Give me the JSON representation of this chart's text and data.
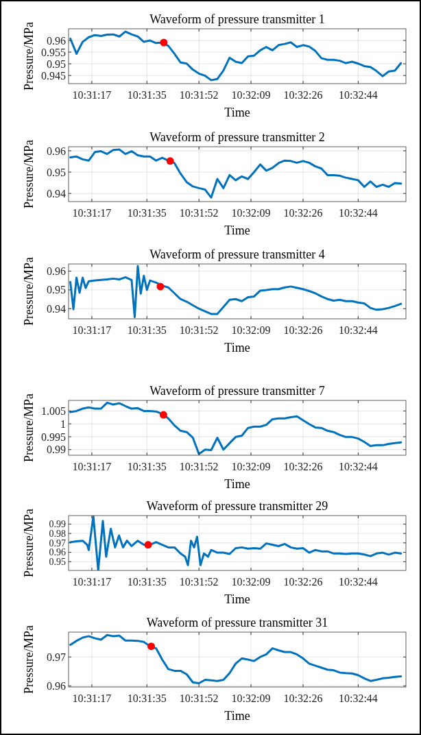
{
  "chart_data": [
    {
      "type": "line",
      "title": "Waveform of pressure transmitter 1",
      "xlabel": "Time",
      "ylabel": "Pressure/MPa",
      "grid": true,
      "x": [
        10.51944,
        10.52,
        10.52056,
        10.52111,
        10.52167,
        10.52222,
        10.52278,
        10.52333,
        10.52389,
        10.52444,
        10.525,
        10.52556,
        10.52611,
        10.52667,
        10.52722,
        10.52778,
        10.52833,
        10.52889,
        10.52944,
        10.53,
        10.53056,
        10.53111,
        10.53167,
        10.53222,
        10.53278,
        10.53333,
        10.53389,
        10.53444,
        10.535,
        10.53556,
        10.53611,
        10.53667,
        10.53722,
        10.53778,
        10.53833,
        10.53889,
        10.53944,
        10.54,
        10.54056,
        10.54111,
        10.54167,
        10.54222,
        10.54278,
        10.54333,
        10.54389,
        10.54444,
        10.545,
        10.54556,
        10.54611,
        10.54667,
        10.54722,
        10.54778,
        10.54833,
        10.54889,
        10.54944
      ],
      "xlim": [
        10.51928,
        10.54989
      ],
      "xticks": [
        {
          "value": 10.52139,
          "label": "10:31:17"
        },
        {
          "value": 10.52639,
          "label": "10:31:35"
        },
        {
          "value": 10.53111,
          "label": "10:31:52"
        },
        {
          "value": 10.53583,
          "label": "10:32:09"
        },
        {
          "value": 10.54056,
          "label": "10:32:26"
        },
        {
          "value": 10.54556,
          "label": "10:32:44"
        }
      ],
      "ylim": [
        0.9415,
        0.965
      ],
      "yticks": [
        0.945,
        0.95,
        0.955,
        0.96
      ],
      "series": [
        {
          "color": "#0072bd",
          "values": [
            0.9608,
            0.9543,
            0.9594,
            0.9614,
            0.9623,
            0.9619,
            0.9625,
            0.9626,
            0.9617,
            0.9638,
            0.9626,
            0.9617,
            0.9594,
            0.96,
            0.9589,
            0.9591,
            0.9577,
            0.9543,
            0.9506,
            0.9501,
            0.9475,
            0.9458,
            0.9449,
            0.943,
            0.9435,
            0.9471,
            0.9526,
            0.9509,
            0.9503,
            0.9532,
            0.9535,
            0.9558,
            0.9572,
            0.9558,
            0.958,
            0.9585,
            0.9592,
            0.9572,
            0.958,
            0.9574,
            0.9555,
            0.9524,
            0.9517,
            0.9517,
            0.9513,
            0.9503,
            0.9509,
            0.9501,
            0.949,
            0.9486,
            0.9469,
            0.9447,
            0.9467,
            0.9471,
            0.9503
          ]
        },
        {
          "type": "scatter",
          "color": "#ff0000",
          "marker": "circle",
          "x": [
            10.52792
          ],
          "values": [
            0.9591
          ]
        }
      ]
    },
    {
      "type": "line",
      "title": "Waveform of pressure transmitter 2",
      "xlabel": "Time",
      "ylabel": "Pressure/MPa",
      "grid": true,
      "x": [
        10.51944,
        10.52,
        10.52056,
        10.52111,
        10.52167,
        10.52222,
        10.52278,
        10.52333,
        10.52389,
        10.52444,
        10.525,
        10.52556,
        10.52611,
        10.52667,
        10.52722,
        10.52778,
        10.52833,
        10.52889,
        10.52944,
        10.53,
        10.53056,
        10.53111,
        10.53167,
        10.53222,
        10.53278,
        10.53333,
        10.53389,
        10.53444,
        10.535,
        10.53556,
        10.53611,
        10.53667,
        10.53722,
        10.53778,
        10.53833,
        10.53889,
        10.53944,
        10.54,
        10.54056,
        10.54111,
        10.54167,
        10.54222,
        10.54278,
        10.54333,
        10.54389,
        10.54444,
        10.545,
        10.54556,
        10.54611,
        10.54667,
        10.54722,
        10.54778,
        10.54833,
        10.54889,
        10.54944
      ],
      "xlim": [
        10.51928,
        10.54989
      ],
      "xticks": [
        {
          "value": 10.52139,
          "label": "10:31:17"
        },
        {
          "value": 10.52639,
          "label": "10:31:35"
        },
        {
          "value": 10.53111,
          "label": "10:31:52"
        },
        {
          "value": 10.53583,
          "label": "10:32:09"
        },
        {
          "value": 10.54056,
          "label": "10:32:26"
        },
        {
          "value": 10.54556,
          "label": "10:32:44"
        }
      ],
      "ylim": [
        0.9362,
        0.9619
      ],
      "yticks": [
        0.94,
        0.95,
        0.96
      ],
      "series": [
        {
          "color": "#0072bd",
          "values": [
            0.9569,
            0.9573,
            0.956,
            0.9554,
            0.9594,
            0.9598,
            0.9585,
            0.9604,
            0.9606,
            0.9585,
            0.9598,
            0.9579,
            0.9573,
            0.9573,
            0.9554,
            0.9567,
            0.9554,
            0.9542,
            0.9493,
            0.9453,
            0.9433,
            0.9425,
            0.9418,
            0.9381,
            0.9468,
            0.9425,
            0.9486,
            0.9462,
            0.948,
            0.9468,
            0.95,
            0.9536,
            0.9507,
            0.952,
            0.9542,
            0.9554,
            0.9552,
            0.9544,
            0.9552,
            0.9544,
            0.9527,
            0.9517,
            0.9486,
            0.9486,
            0.9483,
            0.9474,
            0.9468,
            0.9462,
            0.9431,
            0.9456,
            0.9431,
            0.9441,
            0.9431,
            0.9449,
            0.9446
          ]
        },
        {
          "type": "scatter",
          "color": "#ff0000",
          "marker": "circle",
          "x": [
            10.5285
          ],
          "values": [
            0.9552
          ]
        }
      ]
    },
    {
      "type": "line",
      "title": "Waveform of pressure transmitter 4",
      "xlabel": "Time",
      "ylabel": "Pressure/MPa",
      "grid": true,
      "x": [
        10.51944,
        10.51972,
        10.52,
        10.52028,
        10.52056,
        10.52083,
        10.52111,
        10.52167,
        10.52222,
        10.52278,
        10.52333,
        10.52389,
        10.52444,
        10.525,
        10.52528,
        10.52556,
        10.52583,
        10.52611,
        10.52639,
        10.52667,
        10.52722,
        10.52778,
        10.52833,
        10.52889,
        10.52944,
        10.53,
        10.53056,
        10.53111,
        10.53167,
        10.53222,
        10.53278,
        10.53333,
        10.53389,
        10.53444,
        10.535,
        10.53556,
        10.53611,
        10.53667,
        10.53722,
        10.53778,
        10.53833,
        10.53889,
        10.53944,
        10.54,
        10.54056,
        10.54111,
        10.54167,
        10.54222,
        10.54278,
        10.54333,
        10.54389,
        10.54444,
        10.545,
        10.54556,
        10.54611,
        10.54667,
        10.54722,
        10.54778,
        10.54833,
        10.54889,
        10.54944
      ],
      "xlim": [
        10.51928,
        10.54989
      ],
      "xticks": [
        {
          "value": 10.52139,
          "label": "10:31:17"
        },
        {
          "value": 10.52639,
          "label": "10:31:35"
        },
        {
          "value": 10.53111,
          "label": "10:31:52"
        },
        {
          "value": 10.53583,
          "label": "10:32:09"
        },
        {
          "value": 10.54056,
          "label": "10:32:26"
        },
        {
          "value": 10.54556,
          "label": "10:32:44"
        }
      ],
      "ylim": [
        0.9346,
        0.9638
      ],
      "yticks": [
        0.94,
        0.95,
        0.96
      ],
      "series": [
        {
          "color": "#0072bd",
          "values": [
            0.9542,
            0.9397,
            0.9565,
            0.9485,
            0.9565,
            0.951,
            0.9546,
            0.955,
            0.9553,
            0.9556,
            0.956,
            0.9556,
            0.9567,
            0.9553,
            0.9355,
            0.9627,
            0.948,
            0.9575,
            0.95,
            0.955,
            0.9539,
            0.9522,
            0.9513,
            0.9482,
            0.9451,
            0.9437,
            0.9418,
            0.94,
            0.9386,
            0.9372,
            0.9372,
            0.9409,
            0.9447,
            0.9451,
            0.944,
            0.9461,
            0.9465,
            0.9496,
            0.9499,
            0.9504,
            0.9504,
            0.9513,
            0.9518,
            0.9511,
            0.9504,
            0.9494,
            0.9482,
            0.9465,
            0.9451,
            0.9443,
            0.9447,
            0.944,
            0.944,
            0.9433,
            0.9428,
            0.9404,
            0.9394,
            0.9397,
            0.9404,
            0.9414,
            0.9426
          ]
        },
        {
          "type": "scatter",
          "color": "#ff0000",
          "marker": "circle",
          "x": [
            10.52761
          ],
          "values": [
            0.9518
          ]
        }
      ]
    },
    {
      "type": "line",
      "title": "Waveform of pressure transmitter 7",
      "xlabel": "Time",
      "ylabel": "Pressure/MPa",
      "grid": true,
      "x": [
        10.51944,
        10.52,
        10.52056,
        10.52111,
        10.52167,
        10.52222,
        10.52278,
        10.52333,
        10.52389,
        10.52444,
        10.525,
        10.52556,
        10.52611,
        10.52667,
        10.52722,
        10.52778,
        10.52833,
        10.52889,
        10.52944,
        10.53,
        10.53056,
        10.53111,
        10.53167,
        10.53222,
        10.53278,
        10.53333,
        10.53389,
        10.53444,
        10.535,
        10.53556,
        10.53611,
        10.53667,
        10.53722,
        10.53778,
        10.53833,
        10.53889,
        10.53944,
        10.54,
        10.54056,
        10.54111,
        10.54167,
        10.54222,
        10.54278,
        10.54333,
        10.54389,
        10.54444,
        10.545,
        10.54556,
        10.54611,
        10.54667,
        10.54722,
        10.54778,
        10.54833,
        10.54889,
        10.54944
      ],
      "xlim": [
        10.51928,
        10.54989
      ],
      "xticks": [
        {
          "value": 10.52139,
          "label": "10:31:17"
        },
        {
          "value": 10.52639,
          "label": "10:31:35"
        },
        {
          "value": 10.53111,
          "label": "10:31:52"
        },
        {
          "value": 10.53583,
          "label": "10:32:09"
        },
        {
          "value": 10.54056,
          "label": "10:32:26"
        },
        {
          "value": 10.54556,
          "label": "10:32:44"
        }
      ],
      "ylim": [
        0.9878,
        1.0091
      ],
      "yticks": [
        0.99,
        0.995,
        1,
        1.005
      ],
      "series": [
        {
          "color": "#0072bd",
          "values": [
            1.0046,
            1.005,
            1.0059,
            1.0064,
            1.0059,
            1.0059,
            1.0082,
            1.0075,
            1.008,
            1.0069,
            1.0059,
            1.0061,
            1.005,
            1.005,
            1.0048,
            1.0039,
            1.0021,
            0.9994,
            0.9973,
            0.9968,
            0.9946,
            0.9883,
            0.99,
            0.9898,
            0.9946,
            0.99,
            0.9925,
            0.9949,
            0.9954,
            0.9984,
            0.9989,
            0.9989,
            0.9996,
            1.0018,
            1.0021,
            1.0021,
            1.0026,
            1.0029,
            1.0014,
            0.9999,
            0.9986,
            0.9984,
            0.9973,
            0.9968,
            0.9957,
            0.9949,
            0.9949,
            0.9943,
            0.993,
            0.9914,
            0.9917,
            0.9917,
            0.9922,
            0.9925,
            0.9928
          ]
        },
        {
          "type": "scatter",
          "color": "#ff0000",
          "marker": "circle",
          "x": [
            10.52789
          ],
          "values": [
            1.0035
          ]
        }
      ]
    },
    {
      "type": "line",
      "title": "Waveform of pressure transmitter 29",
      "xlabel": "Time",
      "ylabel": "Pressure/MPa",
      "grid": true,
      "x": [
        10.51944,
        10.52,
        10.52056,
        10.52097,
        10.52111,
        10.52153,
        10.52197,
        10.52239,
        10.52269,
        10.52311,
        10.5235,
        10.52386,
        10.52422,
        10.52458,
        10.525,
        10.52556,
        10.52611,
        10.52667,
        10.52722,
        10.52778,
        10.52833,
        10.52889,
        10.52944,
        10.52986,
        10.53011,
        10.53039,
        10.53067,
        10.53094,
        10.53125,
        10.53156,
        10.53194,
        10.53222,
        10.53278,
        10.53333,
        10.53389,
        10.53444,
        10.535,
        10.53556,
        10.53611,
        10.53667,
        10.53722,
        10.53778,
        10.53833,
        10.53889,
        10.53944,
        10.54,
        10.54056,
        10.54111,
        10.54167,
        10.54222,
        10.54278,
        10.54333,
        10.54389,
        10.54444,
        10.545,
        10.54556,
        10.54611,
        10.54667,
        10.54722,
        10.54778,
        10.54833,
        10.54889,
        10.54944
      ],
      "xlim": [
        10.51928,
        10.54989
      ],
      "xticks": [
        {
          "value": 10.52139,
          "label": "10:31:17"
        },
        {
          "value": 10.52639,
          "label": "10:31:35"
        },
        {
          "value": 10.53111,
          "label": "10:31:52"
        },
        {
          "value": 10.53583,
          "label": "10:32:09"
        },
        {
          "value": 10.54056,
          "label": "10:32:26"
        },
        {
          "value": 10.54556,
          "label": "10:32:44"
        }
      ],
      "ylim": [
        0.9407,
        0.999
      ],
      "yticks": [
        0.95,
        0.96,
        0.97,
        0.98,
        0.99
      ],
      "series": [
        {
          "color": "#0072bd",
          "values": [
            0.9708,
            0.9717,
            0.9723,
            0.968,
            0.9624,
            0.9982,
            0.9407,
            0.9934,
            0.9553,
            0.985,
            0.9652,
            0.9779,
            0.9652,
            0.9723,
            0.9666,
            0.9723,
            0.968,
            0.968,
            0.9708,
            0.968,
            0.9652,
            0.9652,
            0.9587,
            0.9553,
            0.9463,
            0.9723,
            0.9652,
            0.9765,
            0.9463,
            0.9587,
            0.9553,
            0.9624,
            0.9596,
            0.9596,
            0.9582,
            0.9644,
            0.9652,
            0.9638,
            0.9644,
            0.9638,
            0.9694,
            0.968,
            0.9666,
            0.9689,
            0.9652,
            0.9638,
            0.9644,
            0.9596,
            0.9624,
            0.961,
            0.961,
            0.9587,
            0.9587,
            0.9582,
            0.9587,
            0.9587,
            0.9576,
            0.9559,
            0.9587,
            0.9596,
            0.9576,
            0.9596,
            0.9587
          ]
        },
        {
          "type": "scatter",
          "color": "#ff0000",
          "marker": "circle",
          "x": [
            10.5265
          ],
          "values": [
            0.968
          ]
        }
      ]
    },
    {
      "type": "line",
      "title": "Waveform of pressure transmitter 31",
      "xlabel": "Time",
      "ylabel": "Pressure/MPa",
      "grid": true,
      "x": [
        10.51944,
        10.52,
        10.52056,
        10.52111,
        10.52167,
        10.52222,
        10.52278,
        10.52333,
        10.52389,
        10.52444,
        10.525,
        10.52556,
        10.52611,
        10.52667,
        10.52722,
        10.52778,
        10.52833,
        10.52889,
        10.52944,
        10.53,
        10.53056,
        10.53111,
        10.53167,
        10.53222,
        10.53278,
        10.53333,
        10.53389,
        10.53444,
        10.535,
        10.53556,
        10.53611,
        10.53667,
        10.53722,
        10.53778,
        10.53833,
        10.53889,
        10.53944,
        10.54,
        10.54056,
        10.54111,
        10.54167,
        10.54222,
        10.54278,
        10.54333,
        10.54389,
        10.54444,
        10.545,
        10.54556,
        10.54611,
        10.54667,
        10.54722,
        10.54778,
        10.54833,
        10.54889,
        10.54944
      ],
      "xlim": [
        10.51928,
        10.54989
      ],
      "xticks": [
        {
          "value": 10.52139,
          "label": "10:31:17"
        },
        {
          "value": 10.52639,
          "label": "10:31:35"
        },
        {
          "value": 10.53111,
          "label": "10:31:52"
        },
        {
          "value": 10.53583,
          "label": "10:32:09"
        },
        {
          "value": 10.54056,
          "label": "10:32:26"
        },
        {
          "value": 10.54556,
          "label": "10:32:44"
        }
      ],
      "ylim": [
        0.9596,
        0.9786
      ],
      "yticks": [
        0.96,
        0.97
      ],
      "series": [
        {
          "color": "#0072bd",
          "values": [
            0.9742,
            0.9756,
            0.9767,
            0.9772,
            0.9765,
            0.976,
            0.9776,
            0.9772,
            0.9774,
            0.9757,
            0.9757,
            0.9756,
            0.9752,
            0.9737,
            0.973,
            0.9691,
            0.9658,
            0.9652,
            0.9652,
            0.964,
            0.9612,
            0.9609,
            0.9621,
            0.9619,
            0.9617,
            0.9621,
            0.9644,
            0.9677,
            0.9695,
            0.9691,
            0.9686,
            0.97,
            0.9709,
            0.973,
            0.9723,
            0.9717,
            0.9717,
            0.9709,
            0.9695,
            0.9677,
            0.967,
            0.9663,
            0.9656,
            0.9654,
            0.9646,
            0.9644,
            0.9643,
            0.9637,
            0.9626,
            0.9617,
            0.9621,
            0.9626,
            0.9628,
            0.9631,
            0.9633
          ]
        },
        {
          "type": "scatter",
          "color": "#ff0000",
          "marker": "circle",
          "x": [
            10.52678
          ],
          "values": [
            0.9737
          ]
        }
      ]
    }
  ]
}
